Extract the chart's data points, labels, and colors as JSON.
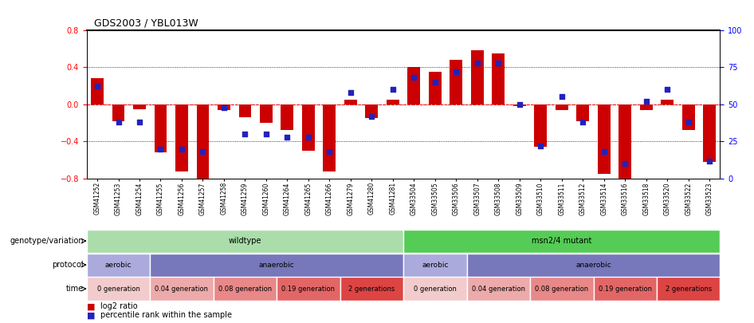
{
  "title": "GDS2003 / YBL013W",
  "samples": [
    "GSM41252",
    "GSM41253",
    "GSM41254",
    "GSM41255",
    "GSM41256",
    "GSM41257",
    "GSM41258",
    "GSM41259",
    "GSM41260",
    "GSM41264",
    "GSM41265",
    "GSM41266",
    "GSM41279",
    "GSM41280",
    "GSM41281",
    "GSM33504",
    "GSM33505",
    "GSM33506",
    "GSM33507",
    "GSM33508",
    "GSM33509",
    "GSM33510",
    "GSM33511",
    "GSM33512",
    "GSM33514",
    "GSM33516",
    "GSM33518",
    "GSM33520",
    "GSM33522",
    "GSM33523"
  ],
  "log2_ratio": [
    0.28,
    -0.18,
    -0.05,
    -0.52,
    -0.72,
    -0.82,
    -0.06,
    -0.14,
    -0.2,
    -0.28,
    -0.5,
    -0.72,
    0.05,
    -0.15,
    0.05,
    0.4,
    0.35,
    0.48,
    0.58,
    0.55,
    -0.02,
    -0.46,
    -0.06,
    -0.18,
    -0.75,
    -0.82,
    -0.06,
    0.05,
    -0.28,
    -0.62
  ],
  "percentile": [
    62,
    38,
    38,
    20,
    20,
    18,
    48,
    30,
    30,
    28,
    28,
    18,
    58,
    42,
    60,
    68,
    65,
    72,
    78,
    78,
    50,
    22,
    55,
    38,
    18,
    10,
    52,
    60,
    38,
    12
  ],
  "ylim_left": [
    -0.8,
    0.8
  ],
  "ylim_right": [
    0,
    100
  ],
  "bar_color": "#cc0000",
  "dot_color": "#2222bb",
  "background_color": "#ffffff",
  "genotype_wt": {
    "start": 0,
    "end": 15,
    "label": "wildtype",
    "color": "#aaddaa"
  },
  "genotype_mut": {
    "start": 15,
    "end": 30,
    "label": "msn2/4 mutant",
    "color": "#55cc55"
  },
  "protocol_blocks": [
    {
      "start": 0,
      "end": 3,
      "label": "aerobic",
      "color": "#aaaadd"
    },
    {
      "start": 3,
      "end": 15,
      "label": "anaerobic",
      "color": "#7777bb"
    },
    {
      "start": 15,
      "end": 18,
      "label": "aerobic",
      "color": "#aaaadd"
    },
    {
      "start": 18,
      "end": 30,
      "label": "anaerobic",
      "color": "#7777bb"
    }
  ],
  "time_blocks": [
    {
      "start": 0,
      "end": 3,
      "label": "0 generation",
      "color": "#f2cccc"
    },
    {
      "start": 3,
      "end": 6,
      "label": "0.04 generation",
      "color": "#edaaaa"
    },
    {
      "start": 6,
      "end": 9,
      "label": "0.08 generation",
      "color": "#e88888"
    },
    {
      "start": 9,
      "end": 12,
      "label": "0.19 generation",
      "color": "#e36666"
    },
    {
      "start": 12,
      "end": 15,
      "label": "2 generations",
      "color": "#dd4444"
    },
    {
      "start": 15,
      "end": 18,
      "label": "0 generation",
      "color": "#f2cccc"
    },
    {
      "start": 18,
      "end": 21,
      "label": "0.04 generation",
      "color": "#edaaaa"
    },
    {
      "start": 21,
      "end": 24,
      "label": "0.08 generation",
      "color": "#e88888"
    },
    {
      "start": 24,
      "end": 27,
      "label": "0.19 generation",
      "color": "#e36666"
    },
    {
      "start": 27,
      "end": 30,
      "label": "2 generations",
      "color": "#dd4444"
    }
  ],
  "row_labels": [
    "genotype/variation",
    "protocol",
    "time"
  ],
  "legend": [
    {
      "label": "log2 ratio",
      "color": "#cc0000"
    },
    {
      "label": "percentile rank within the sample",
      "color": "#2222bb"
    }
  ]
}
